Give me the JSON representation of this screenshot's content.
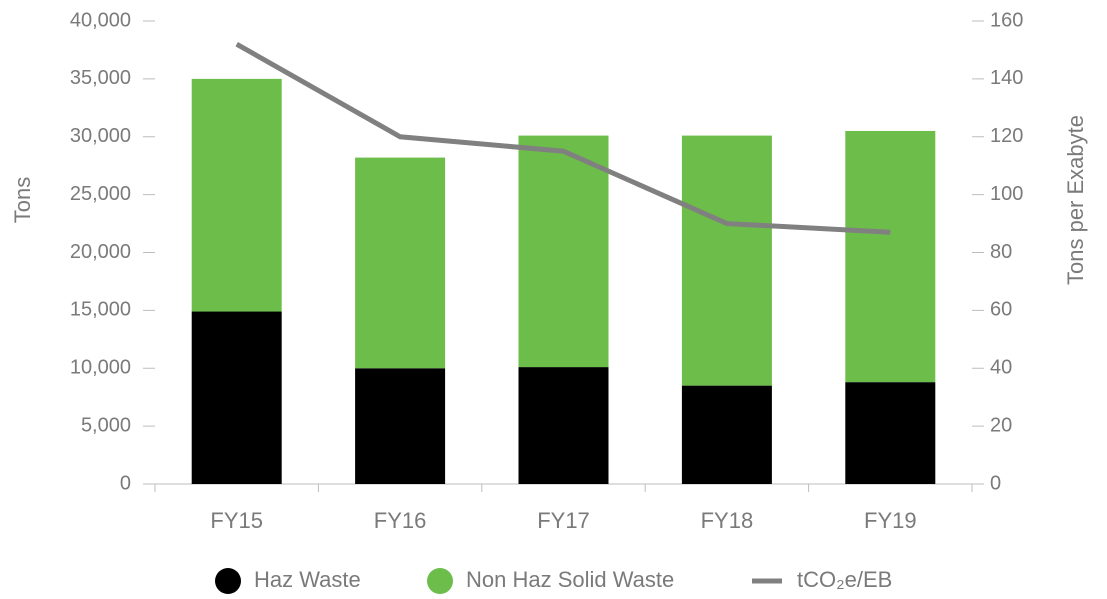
{
  "chart_data": {
    "type": "bar",
    "stacked": true,
    "y_label": "Tons",
    "y2_label": "Tons per Exabyte",
    "categories": [
      "FY15",
      "FY16",
      "FY17",
      "FY18",
      "FY19"
    ],
    "series": [
      {
        "name": "Haz Waste",
        "color": "#000000",
        "type": "bar",
        "values": [
          14900,
          10000,
          10100,
          8500,
          8800
        ]
      },
      {
        "name": "Non Haz Solid Waste",
        "color": "#6cbd4a",
        "type": "bar",
        "values": [
          20100,
          18200,
          20000,
          21600,
          21700
        ]
      },
      {
        "name": "tCO₂e/EB",
        "color": "#808080",
        "type": "line",
        "axis": "y2",
        "values": [
          152,
          120,
          115,
          90,
          87
        ]
      }
    ],
    "ylim": [
      0,
      40000
    ],
    "yticks": [
      0,
      {
        "value": 5000,
        "label": "5,000"
      },
      {
        "value": 10000,
        "label": "10,000"
      },
      {
        "value": 15000,
        "label": "15,000"
      },
      {
        "value": 20000,
        "label": "20,000"
      },
      {
        "value": 25000,
        "label": "25,000"
      },
      {
        "value": 30000,
        "label": "30,000"
      },
      {
        "value": 35000,
        "label": "35,000"
      },
      {
        "value": 40000,
        "label": "40,000"
      }
    ],
    "y2lim": [
      0,
      160
    ],
    "y2ticks": [
      0,
      20,
      40,
      60,
      80,
      100,
      120,
      140,
      160
    ],
    "legend": "bottom"
  }
}
